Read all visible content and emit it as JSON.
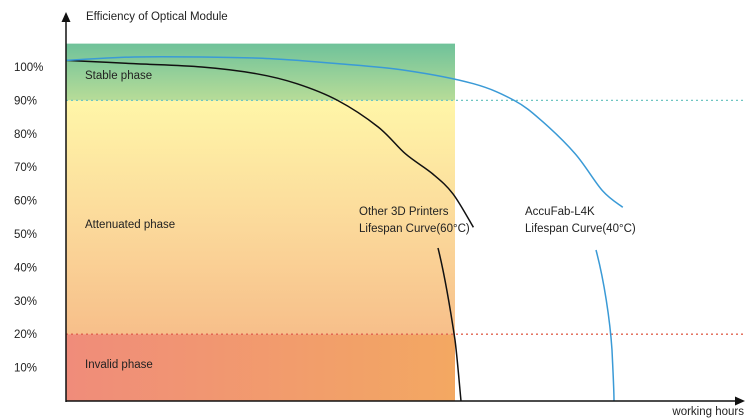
{
  "chart_data": {
    "type": "line",
    "title": "",
    "ylabel": "Efficiency of Optical Module",
    "xlabel": "working hours",
    "ylim": [
      0,
      110
    ],
    "y_ticks": [
      {
        "value": 100,
        "label": "100%"
      },
      {
        "value": 90,
        "label": "90%"
      },
      {
        "value": 80,
        "label": "80%"
      },
      {
        "value": 70,
        "label": "70%"
      },
      {
        "value": 60,
        "label": "60%"
      },
      {
        "value": 50,
        "label": "50%"
      },
      {
        "value": 40,
        "label": "40%"
      },
      {
        "value": 30,
        "label": "30%"
      },
      {
        "value": 20,
        "label": "20%"
      },
      {
        "value": 10,
        "label": "10%"
      }
    ],
    "phases": [
      {
        "label": "Stable phase",
        "y_range": [
          90,
          107
        ]
      },
      {
        "label": "Attenuated phase",
        "y_range": [
          20,
          90
        ]
      },
      {
        "label": "Invalid phase",
        "y_range": [
          0,
          20
        ]
      }
    ],
    "threshold_lines": [
      {
        "value": 90,
        "color": "#6fc6c2"
      },
      {
        "value": 20,
        "color": "#e0634f"
      }
    ],
    "series": [
      {
        "label_lines": [
          "Other 3D Printers",
          "Lifespan Curve(60°C)"
        ],
        "color": "#111111",
        "x": [
          0,
          10,
          20,
          28,
          34,
          40,
          46,
          50,
          54,
          57,
          60
        ],
        "y": [
          102,
          101,
          100,
          98,
          95,
          90,
          82,
          74,
          68,
          62,
          52
        ]
      },
      {
        "label_lines": [
          "AccuFab-L4K",
          "Lifespan Curve(40°C)"
        ],
        "color": "#3a9ad6",
        "x": [
          0,
          10,
          20,
          30,
          40,
          50,
          60,
          66,
          70,
          75,
          79,
          82
        ],
        "y": [
          102,
          103,
          103,
          102.5,
          101,
          99,
          95,
          90,
          84,
          74,
          63,
          58
        ]
      }
    ]
  }
}
